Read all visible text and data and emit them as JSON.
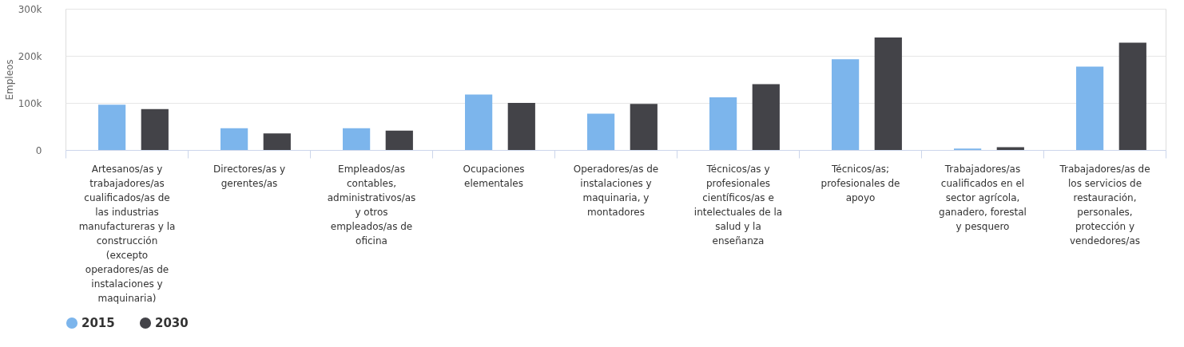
{
  "chart_data": {
    "type": "bar",
    "ylabel": "Empleos",
    "categories": [
      "Artesanos/as y trabajadores/as cualificados/as de las industrias manufactureras y la construcción (excepto operadores/as de instalaciones y maquinaria)",
      "Directores/as y gerentes/as",
      "Empleados/as contables, administrativos/as y otros empleados/as de oficina",
      "Ocupaciones elementales",
      "Operadores/as de instalaciones y maquinaria, y montadores",
      "Técnicos/as y profesionales científicos/as e intelectuales de la salud y la enseñanza",
      "Técnicos/as; profesionales de apoyo",
      "Trabajadores/as cualificados en el sector agrícola, ganadero, forestal y pesquero",
      "Trabajadores/as de los servicios de restauración, personales, protección y vendedores/as"
    ],
    "series": [
      {
        "name": "2015",
        "color": "#7cb5ec",
        "values": [
          96000,
          46000,
          46000,
          118000,
          77000,
          112000,
          193000,
          3000,
          177000
        ]
      },
      {
        "name": "2030",
        "color": "#434348",
        "values": [
          87000,
          35000,
          41000,
          100000,
          98000,
          140000,
          239000,
          6000,
          228000
        ]
      }
    ],
    "ylim": [
      0,
      300000
    ],
    "yticks": [
      {
        "value": 0,
        "label": "0"
      },
      {
        "value": 100000,
        "label": "100k"
      },
      {
        "value": 200000,
        "label": "200k"
      },
      {
        "value": 300000,
        "label": "300k"
      }
    ],
    "grid": "y",
    "legend": "bottom"
  }
}
